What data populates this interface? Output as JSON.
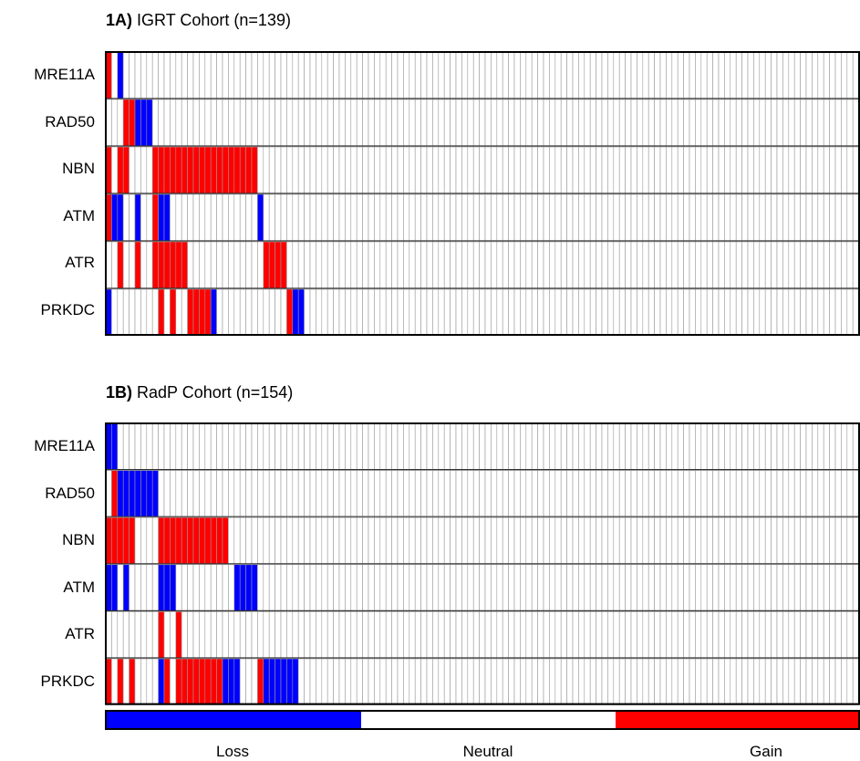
{
  "chart_data": [
    {
      "type": "heatmap",
      "panel_label": "1A)",
      "title": "IGRT Cohort (n=139)",
      "n": 139,
      "rows": [
        "MRE11A",
        "RAD50",
        "NBN",
        "ATM",
        "ATR",
        "PRKDC"
      ],
      "value_key": {
        "-1": "Loss",
        "0": "Neutral",
        "1": "Gain"
      },
      "runs": [
        [
          [
            0,
            1,
            1
          ],
          [
            2,
            1,
            -1
          ]
        ],
        [
          [
            3,
            2,
            1
          ],
          [
            5,
            3,
            -1
          ]
        ],
        [
          [
            0,
            1,
            1
          ],
          [
            2,
            2,
            1
          ],
          [
            8,
            18,
            1
          ]
        ],
        [
          [
            0,
            1,
            1
          ],
          [
            1,
            2,
            -1
          ],
          [
            5,
            1,
            -1
          ],
          [
            8,
            1,
            1
          ],
          [
            9,
            2,
            -1
          ],
          [
            26,
            1,
            -1
          ]
        ],
        [
          [
            2,
            1,
            1
          ],
          [
            5,
            1,
            1
          ],
          [
            8,
            6,
            1
          ],
          [
            27,
            4,
            1
          ]
        ],
        [
          [
            0,
            1,
            -1
          ],
          [
            9,
            1,
            1
          ],
          [
            11,
            1,
            1
          ],
          [
            14,
            4,
            1
          ],
          [
            18,
            1,
            -1
          ],
          [
            31,
            1,
            1
          ],
          [
            32,
            2,
            -1
          ]
        ]
      ]
    },
    {
      "type": "heatmap",
      "panel_label": "1B)",
      "title": "RadP Cohort (n=154)",
      "n": 154,
      "rows": [
        "MRE11A",
        "RAD50",
        "NBN",
        "ATM",
        "ATR",
        "PRKDC"
      ],
      "value_key": {
        "-1": "Loss",
        "0": "Neutral",
        "1": "Gain"
      },
      "runs": [
        [
          [
            0,
            2,
            -1
          ]
        ],
        [
          [
            1,
            1,
            1
          ],
          [
            2,
            7,
            -1
          ]
        ],
        [
          [
            0,
            5,
            1
          ],
          [
            9,
            12,
            1
          ]
        ],
        [
          [
            0,
            2,
            -1
          ],
          [
            3,
            1,
            -1
          ],
          [
            9,
            3,
            -1
          ],
          [
            22,
            4,
            -1
          ]
        ],
        [
          [
            9,
            1,
            1
          ],
          [
            12,
            1,
            1
          ]
        ],
        [
          [
            0,
            1,
            1
          ],
          [
            2,
            1,
            1
          ],
          [
            4,
            1,
            1
          ],
          [
            9,
            1,
            -1
          ],
          [
            10,
            1,
            1
          ],
          [
            12,
            8,
            1
          ],
          [
            20,
            3,
            -1
          ],
          [
            26,
            1,
            1
          ],
          [
            27,
            6,
            -1
          ]
        ]
      ]
    }
  ],
  "legend": {
    "items": [
      {
        "label": "Loss",
        "color": "#0000ff"
      },
      {
        "label": "Neutral",
        "color": "#ffffff"
      },
      {
        "label": "Gain",
        "color": "#ff0000"
      }
    ]
  },
  "colors": {
    "loss": "#0000ff",
    "neutral": "#ffffff",
    "gain": "#ff0000",
    "cell_border": "#999999",
    "frame": "#000000"
  }
}
